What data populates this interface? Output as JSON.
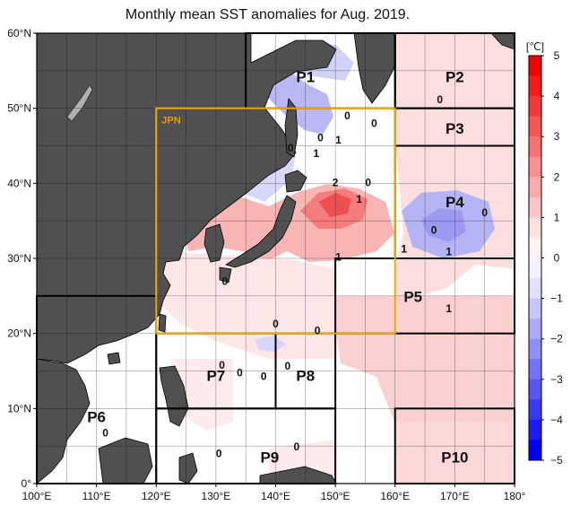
{
  "title": "Monthly mean SST anomalies for Aug. 2019.",
  "lon_ticks": [
    {
      "v": 100,
      "label": "100°E"
    },
    {
      "v": 110,
      "label": "110°E"
    },
    {
      "v": 120,
      "label": "120°E"
    },
    {
      "v": 130,
      "label": "130°E"
    },
    {
      "v": 140,
      "label": "140°E"
    },
    {
      "v": 150,
      "label": "150°E"
    },
    {
      "v": 160,
      "label": "160°E"
    },
    {
      "v": 170,
      "label": "170°E"
    },
    {
      "v": 180,
      "label": "180°"
    }
  ],
  "lat_ticks": [
    {
      "v": 0,
      "label": "0°"
    },
    {
      "v": 10,
      "label": "10°N"
    },
    {
      "v": 20,
      "label": "20°N"
    },
    {
      "v": 30,
      "label": "30°N"
    },
    {
      "v": 40,
      "label": "40°N"
    },
    {
      "v": 50,
      "label": "50°N"
    },
    {
      "v": 60,
      "label": "60°N"
    }
  ],
  "regions": [
    {
      "name": "P1",
      "lon": [
        135,
        160
      ],
      "lat": [
        50,
        60
      ],
      "label_at": [
        145,
        53.5
      ]
    },
    {
      "name": "P2",
      "lon": [
        160,
        180
      ],
      "lat": [
        50,
        60
      ],
      "label_at": [
        170,
        53.5
      ]
    },
    {
      "name": "P3",
      "lon": [
        160,
        180
      ],
      "lat": [
        45,
        50
      ],
      "label_at": [
        170,
        46.6
      ]
    },
    {
      "name": "P4",
      "lon": [
        160,
        180
      ],
      "lat": [
        30,
        45
      ],
      "label_at": [
        170,
        36.8
      ]
    },
    {
      "name": "P5",
      "lon": [
        150,
        180
      ],
      "lat": [
        20,
        30
      ],
      "label_at": [
        163,
        24.2
      ]
    },
    {
      "name": "P6",
      "lon": [
        100,
        120
      ],
      "lat": [
        0,
        25
      ],
      "label_at": [
        110,
        8.2
      ]
    },
    {
      "name": "P7",
      "lon": [
        120,
        140
      ],
      "lat": [
        10,
        20
      ],
      "label_at": [
        130,
        13.7
      ]
    },
    {
      "name": "P8",
      "lon": [
        140,
        150
      ],
      "lat": [
        10,
        20
      ],
      "label_at": [
        145,
        13.7
      ]
    },
    {
      "name": "P9",
      "lon": [
        120,
        150
      ],
      "lat": [
        0,
        10
      ],
      "label_at": [
        139,
        2.8
      ]
    },
    {
      "name": "P10",
      "lon": [
        160,
        180
      ],
      "lat": [
        0,
        10
      ],
      "label_at": [
        170,
        2.8
      ]
    }
  ],
  "jpn_box": {
    "name": "JPN",
    "lon": [
      120,
      160
    ],
    "lat": [
      20,
      50
    ],
    "color": "#f0a800"
  },
  "contour_labels": [
    {
      "t": "0",
      "lon": 152,
      "lat": 48.5
    },
    {
      "t": "0",
      "lon": 156.5,
      "lat": 47.5
    },
    {
      "t": "1",
      "lon": 150.5,
      "lat": 45.3
    },
    {
      "t": "0",
      "lon": 147.5,
      "lat": 45.6
    },
    {
      "t": "0",
      "lon": 142.5,
      "lat": 44.2
    },
    {
      "t": "1",
      "lon": 146.8,
      "lat": 43.5
    },
    {
      "t": "2",
      "lon": 150,
      "lat": 39.6
    },
    {
      "t": "0",
      "lon": 155.5,
      "lat": 39.6
    },
    {
      "t": "1",
      "lon": 154,
      "lat": 37.4
    },
    {
      "t": "0",
      "lon": 167.5,
      "lat": 50.7
    },
    {
      "t": "0",
      "lon": 166.5,
      "lat": 33.3
    },
    {
      "t": "0",
      "lon": 175,
      "lat": 35.6
    },
    {
      "t": "1",
      "lon": 161.5,
      "lat": 30.8
    },
    {
      "t": "1",
      "lon": 169,
      "lat": 30.4
    },
    {
      "t": "1",
      "lon": 150.5,
      "lat": 29.7
    },
    {
      "t": "0",
      "lon": 131.5,
      "lat": 26.5
    },
    {
      "t": "1",
      "lon": 169,
      "lat": 22.8
    },
    {
      "t": "0",
      "lon": 140,
      "lat": 20.8
    },
    {
      "t": "0",
      "lon": 131,
      "lat": 15.3
    },
    {
      "t": "0",
      "lon": 134,
      "lat": 14.3
    },
    {
      "t": "0",
      "lon": 138,
      "lat": 13.8
    },
    {
      "t": "0",
      "lon": 142,
      "lat": 15.2
    },
    {
      "t": "0",
      "lon": 147,
      "lat": 19.9
    },
    {
      "t": "0",
      "lon": 111.5,
      "lat": 6.3
    },
    {
      "t": "0",
      "lon": 130.5,
      "lat": 3.5
    },
    {
      "t": "0",
      "lon": 143.5,
      "lat": 4.4
    }
  ],
  "colorbar": {
    "unit": "[℃]",
    "levels": [
      5,
      4.5,
      4,
      3.5,
      3,
      2.5,
      2,
      1.5,
      1,
      0.5,
      0,
      -0.5,
      -1,
      -1.5,
      -2,
      -2.5,
      -3,
      -3.5,
      -4,
      -4.5,
      -5
    ],
    "labels": [
      "5",
      "4",
      "3",
      "2",
      "1",
      "0",
      "−1",
      "−2",
      "−3",
      "−4",
      "−5"
    ],
    "colors": [
      "#f40000",
      "#f71c1c",
      "#f73838",
      "#f85656",
      "#f97272",
      "#fa8f8f",
      "#fbabab",
      "#fcc6c6",
      "#fde0e0",
      "#fef2f2",
      "#f2f2fe",
      "#e0e0fd",
      "#c6c6fc",
      "#ababfb",
      "#8f8ffa",
      "#7272f9",
      "#5656f8",
      "#3838f7",
      "#1c1cf7",
      "#0000f4"
    ]
  },
  "colors": {
    "land": "#505050",
    "coast": "#000000",
    "grid": "#000000",
    "border": "#000000"
  }
}
